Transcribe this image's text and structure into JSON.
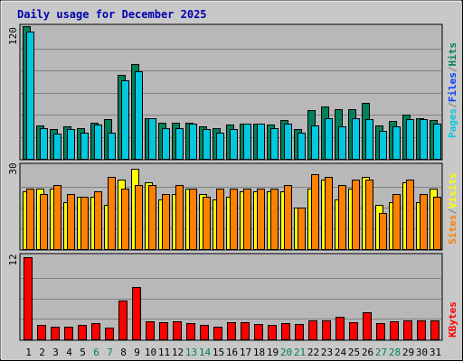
{
  "title": "Daily usage for December 2025",
  "colors": {
    "frame_bg": "#c8c8c8",
    "plot_bg": "#b8b8b8",
    "grid": "#808080",
    "title": "#0000b0",
    "hits": "#00805c",
    "files": "#0040ff",
    "pages": "#00c8e0",
    "visits": "#ffff00",
    "sites": "#ff8000",
    "kbytes": "#ff0000",
    "weekday_label": "#000000",
    "weekend_label": "#00805c"
  },
  "y_axis_labels": {
    "top": "120",
    "middle": "30",
    "bottom": "12"
  },
  "legend": {
    "top": [
      {
        "text": "Pages",
        "color_key": "pages"
      },
      {
        "text": "/",
        "color_key": "grid"
      },
      {
        "text": "Files",
        "color_key": "files"
      },
      {
        "text": "/",
        "color_key": "grid"
      },
      {
        "text": "Hits",
        "color_key": "hits"
      }
    ],
    "middle": [
      {
        "text": "Sites",
        "color_key": "sites"
      },
      {
        "text": "/",
        "color_key": "grid"
      },
      {
        "text": "Visits",
        "color_key": "visits"
      }
    ],
    "bottom": [
      {
        "text": "KBytes",
        "color_key": "kbytes"
      }
    ]
  },
  "chart_data": [
    {
      "type": "bar",
      "panel": "top",
      "categories": [
        "1",
        "2",
        "3",
        "4",
        "5",
        "6",
        "7",
        "8",
        "9",
        "10",
        "11",
        "12",
        "13",
        "14",
        "15",
        "16",
        "17",
        "18",
        "19",
        "20",
        "21",
        "22",
        "23",
        "24",
        "25",
        "26",
        "27",
        "28",
        "29",
        "30",
        "31"
      ],
      "weekend_days": [
        "6",
        "7",
        "13",
        "14",
        "20",
        "21",
        "27",
        "28"
      ],
      "ylim": [
        0,
        120
      ],
      "ytick": 120,
      "grid": true,
      "series": [
        {
          "name": "Hits",
          "color_key": "hits",
          "values": [
            120,
            30,
            27,
            29,
            28,
            33,
            36,
            76,
            86,
            37,
            33,
            33,
            33,
            29,
            28,
            31,
            32,
            32,
            31,
            35,
            27,
            44,
            47,
            45,
            45,
            51,
            30,
            34,
            40,
            37,
            35
          ]
        },
        {
          "name": "Files",
          "color_key": "files",
          "values": [
            0,
            0,
            0,
            0,
            0,
            0,
            0,
            0,
            0,
            0,
            0,
            0,
            0,
            0,
            0,
            0,
            0,
            0,
            0,
            0,
            0,
            0,
            0,
            0,
            0,
            0,
            0,
            0,
            0,
            0,
            0
          ]
        },
        {
          "name": "Pages",
          "color_key": "pages",
          "values": [
            115,
            28,
            23,
            27,
            24,
            31,
            24,
            71,
            79,
            37,
            28,
            28,
            32,
            27,
            24,
            27,
            32,
            32,
            28,
            32,
            24,
            30,
            37,
            29,
            37,
            36,
            25,
            29,
            36,
            36,
            32
          ]
        }
      ]
    },
    {
      "type": "bar",
      "panel": "middle",
      "categories": [
        "1",
        "2",
        "3",
        "4",
        "5",
        "6",
        "7",
        "8",
        "9",
        "10",
        "11",
        "12",
        "13",
        "14",
        "15",
        "16",
        "17",
        "18",
        "19",
        "20",
        "21",
        "22",
        "23",
        "24",
        "25",
        "26",
        "27",
        "28",
        "29",
        "30",
        "31"
      ],
      "ylim": [
        0,
        30
      ],
      "ytick": 30,
      "grid": true,
      "series": [
        {
          "name": "Visits",
          "color_key": "visits",
          "values": [
            21,
            22,
            22,
            17,
            19,
            19,
            16,
            25,
            29,
            24,
            18,
            20,
            22,
            20,
            18,
            19,
            21,
            21,
            21,
            21,
            15,
            22,
            25,
            18,
            22,
            26,
            16,
            17,
            24,
            17,
            22
          ]
        },
        {
          "name": "Sites",
          "color_key": "sites",
          "values": [
            22,
            20,
            23,
            20,
            19,
            21,
            26,
            22,
            23,
            23,
            20,
            23,
            22,
            19,
            22,
            22,
            22,
            22,
            22,
            23,
            15,
            27,
            26,
            23,
            25,
            25,
            13,
            20,
            25,
            20,
            19
          ]
        }
      ]
    },
    {
      "type": "bar",
      "panel": "bottom",
      "categories": [
        "1",
        "2",
        "3",
        "4",
        "5",
        "6",
        "7",
        "8",
        "9",
        "10",
        "11",
        "12",
        "13",
        "14",
        "15",
        "16",
        "17",
        "18",
        "19",
        "20",
        "21",
        "22",
        "23",
        "24",
        "25",
        "26",
        "27",
        "28",
        "29",
        "30",
        "31"
      ],
      "ylim": [
        0,
        12
      ],
      "ytick": 12,
      "grid": true,
      "series": [
        {
          "name": "KBytes",
          "color_key": "kbytes",
          "values": [
            12.0,
            2.1,
            1.8,
            1.8,
            2.1,
            2.4,
            1.7,
            5.7,
            7.7,
            2.6,
            2.5,
            2.6,
            2.4,
            2.1,
            1.8,
            2.5,
            2.5,
            2.2,
            2.1,
            2.4,
            2.2,
            2.8,
            2.8,
            3.3,
            2.5,
            4.0,
            2.4,
            2.6,
            2.8,
            2.8,
            2.8
          ]
        }
      ]
    }
  ]
}
